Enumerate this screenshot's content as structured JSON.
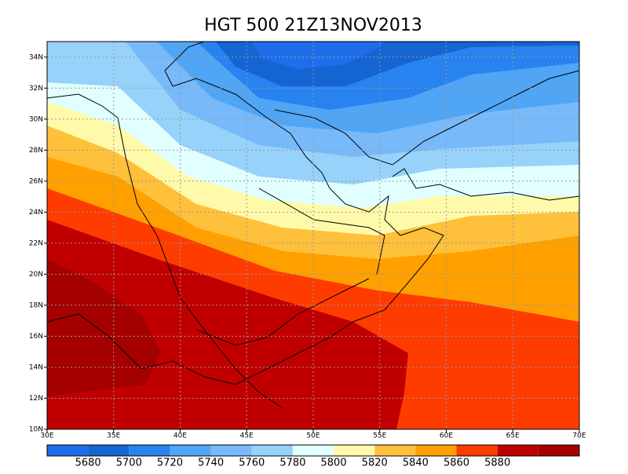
{
  "chart_data": {
    "type": "contour-map",
    "title": "HGT 500 21Z13NOV2013",
    "xlim": [
      30,
      70
    ],
    "ylim": [
      10,
      35
    ],
    "xticks": [
      {
        "value": 30,
        "label": "30E"
      },
      {
        "value": 35,
        "label": "35E"
      },
      {
        "value": 40,
        "label": "40E"
      },
      {
        "value": 45,
        "label": "45E"
      },
      {
        "value": 50,
        "label": "50E"
      },
      {
        "value": 55,
        "label": "55E"
      },
      {
        "value": 60,
        "label": "60E"
      },
      {
        "value": 65,
        "label": "65E"
      },
      {
        "value": 70,
        "label": "70E"
      }
    ],
    "yticks": [
      {
        "value": 10,
        "label": "10N"
      },
      {
        "value": 12,
        "label": "12N"
      },
      {
        "value": 14,
        "label": "14N"
      },
      {
        "value": 16,
        "label": "16N"
      },
      {
        "value": 18,
        "label": "18N"
      },
      {
        "value": 20,
        "label": "20N"
      },
      {
        "value": 22,
        "label": "22N"
      },
      {
        "value": 24,
        "label": "24N"
      },
      {
        "value": 26,
        "label": "26N"
      },
      {
        "value": 28,
        "label": "28N"
      },
      {
        "value": 30,
        "label": "30N"
      },
      {
        "value": 32,
        "label": "32N"
      },
      {
        "value": 34,
        "label": "34N"
      }
    ],
    "grid": true,
    "levels": [
      5680,
      5700,
      5720,
      5740,
      5760,
      5780,
      5800,
      5820,
      5840,
      5860,
      5880
    ],
    "colors": [
      "#1e6eeb",
      "#1464d2",
      "#2882f0",
      "#50a5f5",
      "#78b9fa",
      "#96d2fa",
      "#e1ffff",
      "#fffaaa",
      "#ffc03c",
      "#ffa000",
      "#ff3c00",
      "#c00000",
      "#a50000"
    ]
  }
}
